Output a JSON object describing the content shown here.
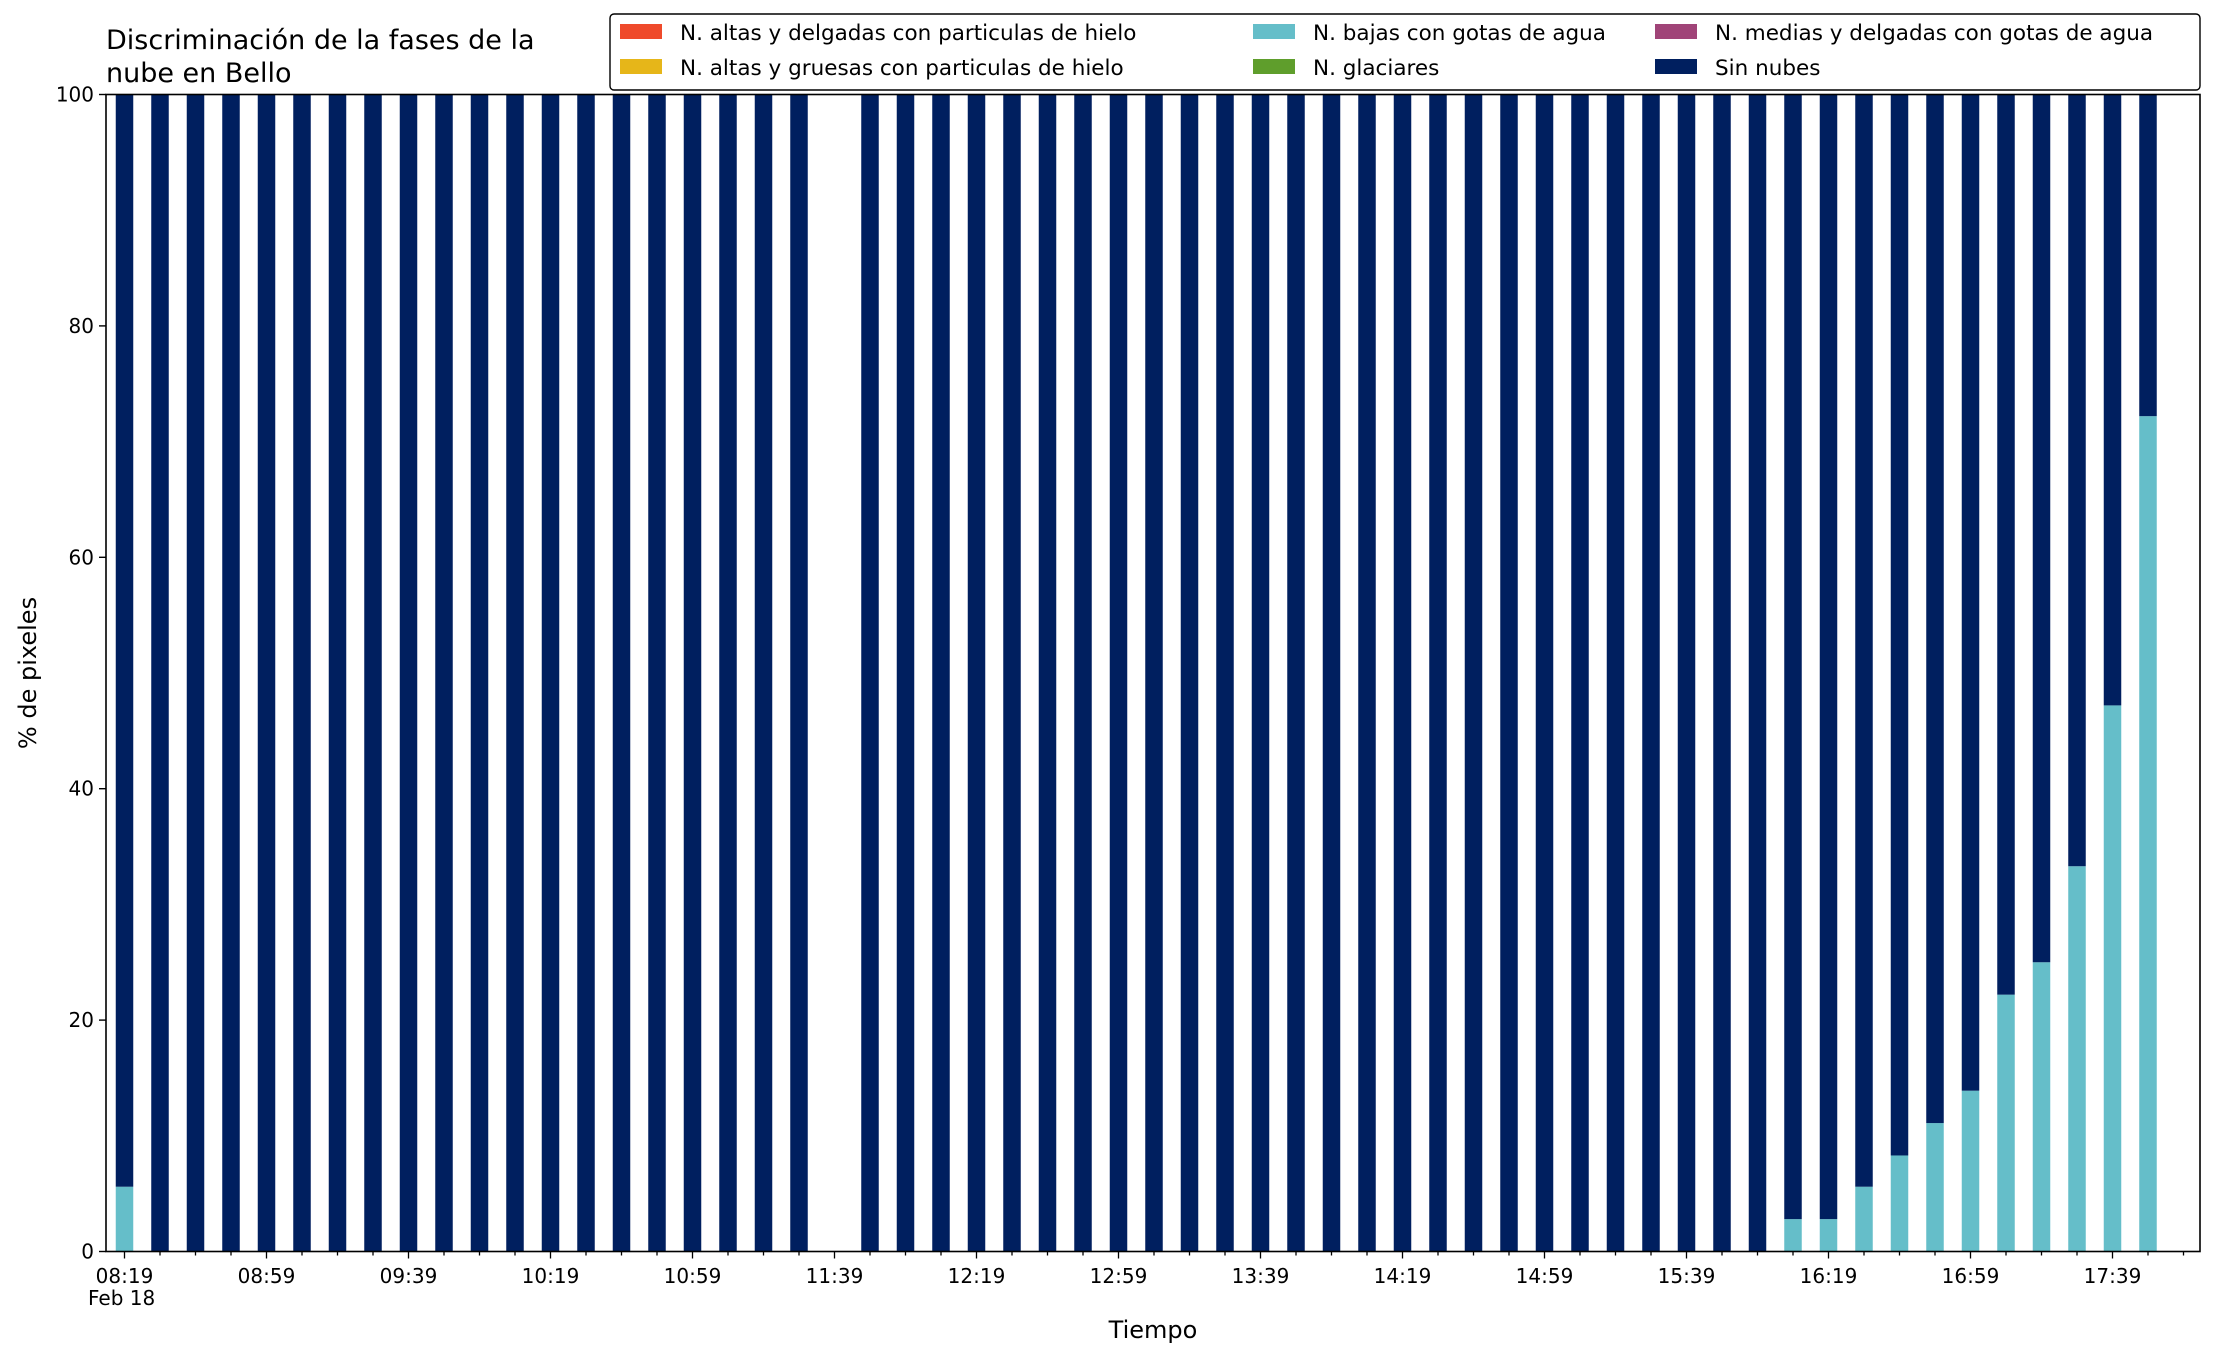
{
  "chart_data": {
    "type": "bar",
    "stacked": true,
    "title_line1": "Discriminación de la fases de la",
    "title_line2": "nube en Bello",
    "xlabel": "Tiempo",
    "ylabel": "% de pixeles",
    "ylim": [
      0,
      100
    ],
    "yticks": [
      0,
      20,
      40,
      60,
      80,
      100
    ],
    "date_label": "Feb 18",
    "legend_position": "top-right",
    "grid": false,
    "time_start": "08:19",
    "time_step_minutes": 10,
    "x_tick_labels": [
      "08:19",
      "08:59",
      "09:39",
      "10:19",
      "10:59",
      "11:39",
      "12:19",
      "12:59",
      "13:39",
      "14:19",
      "14:59",
      "15:39",
      "16:19",
      "16:59",
      "17:39"
    ],
    "categories": [
      "08:19",
      "08:29",
      "08:39",
      "08:49",
      "08:59",
      "09:09",
      "09:19",
      "09:29",
      "09:39",
      "09:49",
      "09:59",
      "10:09",
      "10:19",
      "10:29",
      "10:39",
      "10:49",
      "10:59",
      "11:09",
      "11:19",
      "11:29",
      "11:39",
      "11:49",
      "11:59",
      "12:09",
      "12:19",
      "12:29",
      "12:39",
      "12:49",
      "12:59",
      "13:09",
      "13:19",
      "13:29",
      "13:39",
      "13:49",
      "13:59",
      "14:09",
      "14:19",
      "14:29",
      "14:39",
      "14:49",
      "14:59",
      "15:09",
      "15:19",
      "15:29",
      "15:39",
      "15:49",
      "15:59",
      "16:09",
      "16:19",
      "16:29",
      "16:39",
      "16:49",
      "16:59",
      "17:09",
      "17:19",
      "17:29",
      "17:39",
      "17:49",
      "17:59"
    ],
    "series": [
      {
        "name": "N. altas y delgadas con particulas de hielo",
        "color": "#ef4a2b",
        "values": [
          0,
          0,
          0,
          0,
          0,
          0,
          0,
          0,
          0,
          0,
          0,
          0,
          0,
          0,
          0,
          0,
          0,
          0,
          0,
          0,
          null,
          0,
          0,
          0,
          0,
          0,
          0,
          0,
          0,
          0,
          0,
          0,
          0,
          0,
          0,
          0,
          0,
          0,
          0,
          0,
          0,
          0,
          0,
          0,
          0,
          0,
          0,
          0,
          0,
          0,
          0,
          0,
          0,
          0,
          0,
          0,
          0,
          0,
          0
        ]
      },
      {
        "name": "N. altas y gruesas con particulas de hielo",
        "color": "#e6b619",
        "values": [
          0,
          0,
          0,
          0,
          0,
          0,
          0,
          0,
          0,
          0,
          0,
          0,
          0,
          0,
          0,
          0,
          0,
          0,
          0,
          0,
          null,
          0,
          0,
          0,
          0,
          0,
          0,
          0,
          0,
          0,
          0,
          0,
          0,
          0,
          0,
          0,
          0,
          0,
          0,
          0,
          0,
          0,
          0,
          0,
          0,
          0,
          0,
          0,
          0,
          0,
          0,
          0,
          0,
          0,
          0,
          0,
          0,
          0,
          0
        ]
      },
      {
        "name": "N. bajas con gotas de agua",
        "color": "#65bec9",
        "values": [
          5.6,
          0,
          0,
          0,
          0,
          0,
          0,
          0,
          0,
          0,
          0,
          0,
          0,
          0,
          0,
          0,
          0,
          0,
          0,
          0,
          null,
          0,
          0,
          0,
          0,
          0,
          0,
          0,
          0,
          0,
          0,
          0,
          0,
          0,
          0,
          0,
          0,
          0,
          0,
          0,
          0,
          0,
          0,
          0,
          0,
          0,
          0,
          2.8,
          2.8,
          5.6,
          8.3,
          11.1,
          13.9,
          22.2,
          25.0,
          33.3,
          47.2,
          72.2,
          0
        ]
      },
      {
        "name": "N. glaciares",
        "color": "#5f9e2c",
        "values": [
          0,
          0,
          0,
          0,
          0,
          0,
          0,
          0,
          0,
          0,
          0,
          0,
          0,
          0,
          0,
          0,
          0,
          0,
          0,
          0,
          null,
          0,
          0,
          0,
          0,
          0,
          0,
          0,
          0,
          0,
          0,
          0,
          0,
          0,
          0,
          0,
          0,
          0,
          0,
          0,
          0,
          0,
          0,
          0,
          0,
          0,
          0,
          0,
          0,
          0,
          0,
          0,
          0,
          0,
          0,
          0,
          0,
          0,
          0
        ]
      },
      {
        "name": "N. medias y delgadas con gotas de agua",
        "color": "#a04478",
        "values": [
          0,
          0,
          0,
          0,
          0,
          0,
          0,
          0,
          0,
          0,
          0,
          0,
          0,
          0,
          0,
          0,
          0,
          0,
          0,
          0,
          null,
          0,
          0,
          0,
          0,
          0,
          0,
          0,
          0,
          0,
          0,
          0,
          0,
          0,
          0,
          0,
          0,
          0,
          0,
          0,
          0,
          0,
          0,
          0,
          0,
          0,
          0,
          0,
          0,
          0,
          0,
          0,
          0,
          0,
          0,
          0,
          0,
          0,
          0
        ]
      },
      {
        "name": "Sin nubes",
        "color": "#001f5f",
        "values": [
          94.4,
          100,
          100,
          100,
          100,
          100,
          100,
          100,
          100,
          100,
          100,
          100,
          100,
          100,
          100,
          100,
          100,
          100,
          100,
          100,
          null,
          100,
          100,
          100,
          100,
          100,
          100,
          100,
          100,
          100,
          100,
          100,
          100,
          100,
          100,
          100,
          100,
          100,
          100,
          100,
          100,
          100,
          100,
          100,
          100,
          100,
          100,
          97.2,
          97.2,
          94.4,
          91.7,
          88.9,
          86.1,
          77.8,
          75.0,
          66.7,
          52.8,
          27.8,
          null
        ]
      }
    ]
  }
}
